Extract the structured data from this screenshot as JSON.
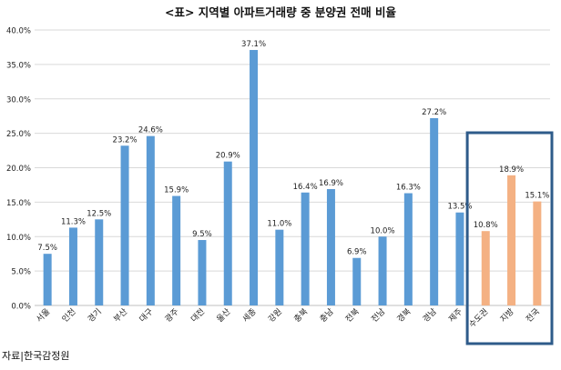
{
  "title": "<표> 지역별 아파트거래량 중 분양권 전매 비율",
  "source": "자료|한국감정원",
  "colors": {
    "blue": "#5b9bd5",
    "orange": "#f4b183",
    "highlight_box": "#2e5b8a",
    "gridline": "#d9d9d9",
    "axis": "#bfbfbf"
  },
  "chart_data": {
    "type": "bar",
    "title": "<표> 지역별 아파트거래량 중 분양권 전매 비율",
    "xlabel": "",
    "ylabel": "",
    "ylim": [
      0,
      40
    ],
    "yticks": [
      "0.0%",
      "5.0%",
      "10.0%",
      "15.0%",
      "20.0%",
      "25.0%",
      "30.0%",
      "35.0%",
      "40.0%"
    ],
    "grid": true,
    "legend": "none",
    "categories": [
      "서울",
      "인천",
      "경기",
      "부산",
      "대구",
      "광주",
      "대전",
      "울산",
      "세종",
      "강원",
      "충북",
      "충남",
      "전북",
      "전남",
      "경북",
      "경남",
      "제주",
      "수도권",
      "지방",
      "전국"
    ],
    "values": [
      7.5,
      11.3,
      12.5,
      23.2,
      24.6,
      15.9,
      9.5,
      20.9,
      37.1,
      11.0,
      16.4,
      16.9,
      6.9,
      10.0,
      16.3,
      27.2,
      13.5,
      10.8,
      18.9,
      15.1
    ],
    "labels": [
      "7.5%",
      "11.3%",
      "12.5%",
      "23.2%",
      "24.6%",
      "15.9%",
      "9.5%",
      "20.9%",
      "37.1%",
      "11.0%",
      "16.4%",
      "16.9%",
      "6.9%",
      "10.0%",
      "16.3%",
      "27.2%",
      "13.5%",
      "10.8%",
      "18.9%",
      "15.1%"
    ],
    "highlighted_categories": [
      "수도권",
      "지방",
      "전국"
    ]
  }
}
